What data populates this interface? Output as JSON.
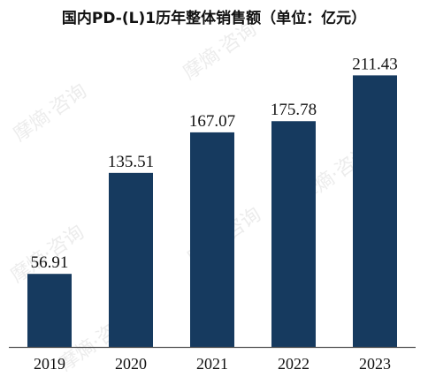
{
  "chart_data": {
    "type": "bar",
    "title": "国内PD-(L)1历年整体销售额（单位：亿元）",
    "categories": [
      "2019",
      "2020",
      "2021",
      "2022",
      "2023"
    ],
    "values": [
      56.91,
      135.51,
      167.07,
      175.78,
      211.43
    ],
    "data_labels": [
      "56.91",
      "135.51",
      "167.07",
      "175.78",
      "211.43"
    ],
    "ylim": [
      0,
      222
    ],
    "bar_color": "#163a5f",
    "grid": false,
    "legend": "none"
  },
  "watermark": {
    "text": "摩熵·咨询"
  }
}
